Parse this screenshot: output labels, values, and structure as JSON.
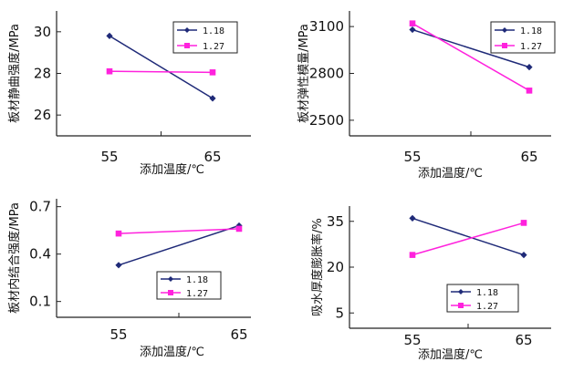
{
  "colors": {
    "series_a": "#1f2a78",
    "series_b": "#ff22dd",
    "axis": "#222222"
  },
  "chart_data": [
    {
      "type": "line",
      "xlabel": "添加温度/℃",
      "ylabel": "板材静曲强度/MPa",
      "categories": [
        "55",
        "65"
      ],
      "ylim": [
        25,
        31
      ],
      "yticks": [
        26,
        28,
        30
      ],
      "series": [
        {
          "name": "1.18",
          "values": [
            29.8,
            26.8
          ]
        },
        {
          "name": "1.27",
          "values": [
            28.1,
            28.05
          ]
        }
      ],
      "legend": "top-right"
    },
    {
      "type": "line",
      "xlabel": "添加温度/℃",
      "ylabel": "板材弹性模量/MPa",
      "categories": [
        "55",
        "65"
      ],
      "ylim": [
        2400,
        3200
      ],
      "yticks": [
        2500,
        2800,
        3100
      ],
      "series": [
        {
          "name": "1.18",
          "values": [
            3080,
            2840
          ]
        },
        {
          "name": "1.27",
          "values": [
            3120,
            2690
          ]
        }
      ],
      "legend": "top-right"
    },
    {
      "type": "line",
      "xlabel": "添加温度/℃",
      "ylabel": "板材内结合强度/MPa",
      "categories": [
        "55",
        "65"
      ],
      "ylim": [
        0.0,
        0.75
      ],
      "yticks": [
        0.1,
        0.4,
        0.7
      ],
      "series": [
        {
          "name": "1.18",
          "values": [
            0.33,
            0.58
          ]
        },
        {
          "name": "1.27",
          "values": [
            0.53,
            0.56
          ]
        }
      ],
      "legend": "bottom-right"
    },
    {
      "type": "line",
      "xlabel": "添加温度/℃",
      "ylabel": "吸水厚度膨胀率/%",
      "categories": [
        "55",
        "65"
      ],
      "ylim": [
        0,
        40
      ],
      "yticks": [
        5,
        20,
        35
      ],
      "series": [
        {
          "name": "1.18",
          "values": [
            36,
            24
          ]
        },
        {
          "name": "1.27",
          "values": [
            24,
            34.5
          ]
        }
      ],
      "legend": "bottom-right"
    }
  ]
}
